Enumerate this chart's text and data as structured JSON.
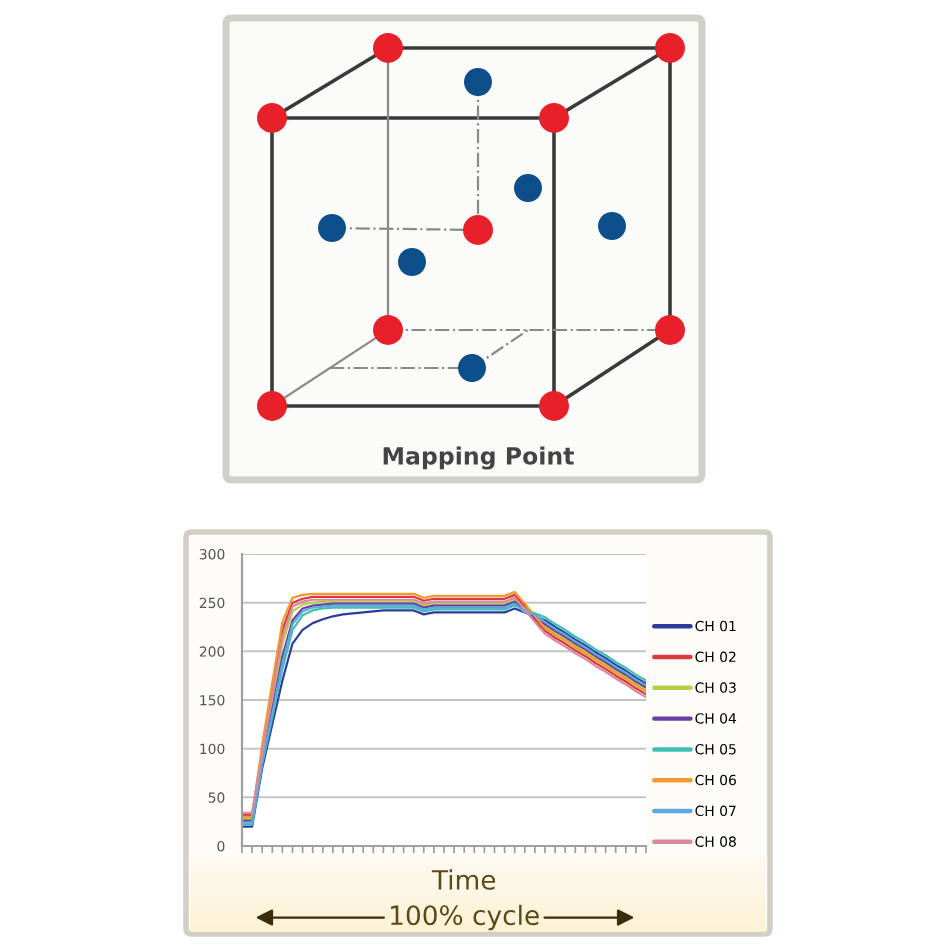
{
  "chart_data": [
    {
      "type": "other",
      "annotations": [
        "Mapping Point"
      ]
    },
    {
      "type": "line",
      "xlabel": "Time",
      "annotations": [
        "100% cycle"
      ],
      "categories": [
        null,
        null,
        null,
        null,
        null,
        null,
        null,
        null,
        null,
        null,
        null,
        null,
        null,
        null,
        null,
        null,
        null,
        null,
        null,
        null,
        null,
        null,
        null,
        null,
        null,
        null,
        null,
        null,
        null,
        null,
        null,
        null,
        null,
        null,
        null,
        null,
        null,
        null,
        null,
        null,
        null
      ],
      "series": [
        {
          "name": "CH 01",
          "color": "#2e3a9c",
          "values": [
            20,
            20,
            80,
            125,
            170,
            208,
            222,
            229,
            233,
            236,
            238,
            239,
            240,
            241,
            242,
            242,
            242,
            242,
            238,
            240,
            240,
            240,
            240,
            240,
            240,
            240,
            240,
            244,
            240,
            236,
            232,
            225,
            219,
            212,
            206,
            199,
            193,
            186,
            180,
            173,
            167
          ]
        },
        {
          "name": "CH 02",
          "color": "#d93a3f",
          "values": [
            32,
            32,
            98,
            160,
            222,
            250,
            254,
            256,
            256,
            256,
            256,
            256,
            256,
            256,
            256,
            256,
            256,
            256,
            252,
            254,
            254,
            254,
            254,
            254,
            254,
            254,
            254,
            258,
            246,
            233,
            221,
            214,
            208,
            201,
            195,
            188,
            182,
            175,
            169,
            162,
            156
          ]
        },
        {
          "name": "CH 03",
          "color": "#b5d046",
          "values": [
            28,
            28,
            92,
            150,
            208,
            241,
            248,
            250,
            251,
            251,
            251,
            251,
            251,
            251,
            251,
            251,
            251,
            251,
            247,
            249,
            249,
            249,
            249,
            249,
            249,
            249,
            249,
            253,
            244,
            235,
            226,
            219,
            213,
            206,
            200,
            193,
            187,
            180,
            174,
            167,
            161
          ]
        },
        {
          "name": "CH 04",
          "color": "#6b3fa0",
          "values": [
            26,
            26,
            88,
            140,
            195,
            232,
            244,
            247,
            248,
            249,
            249,
            249,
            249,
            249,
            249,
            249,
            249,
            249,
            245,
            247,
            247,
            247,
            247,
            247,
            247,
            247,
            247,
            251,
            242,
            234,
            228,
            221,
            215,
            208,
            202,
            195,
            189,
            182,
            176,
            169,
            163
          ]
        },
        {
          "name": "CH 05",
          "color": "#3fbfb0",
          "values": [
            22,
            22,
            84,
            132,
            182,
            222,
            237,
            242,
            244,
            245,
            245,
            245,
            245,
            245,
            245,
            245,
            245,
            245,
            241,
            243,
            243,
            243,
            243,
            243,
            243,
            243,
            243,
            247,
            243,
            239,
            235,
            228,
            222,
            215,
            209,
            202,
            196,
            189,
            183,
            176,
            170
          ]
        },
        {
          "name": "CH 06",
          "color": "#f29a2e",
          "values": [
            30,
            30,
            104,
            168,
            230,
            255,
            258,
            259,
            259,
            259,
            259,
            259,
            259,
            259,
            259,
            259,
            259,
            259,
            255,
            257,
            257,
            257,
            257,
            257,
            257,
            257,
            257,
            261,
            249,
            236,
            224,
            217,
            211,
            204,
            198,
            191,
            185,
            178,
            172,
            165,
            159
          ]
        },
        {
          "name": "CH 07",
          "color": "#5ba8e0",
          "values": [
            24,
            24,
            86,
            136,
            188,
            228,
            241,
            245,
            246,
            247,
            247,
            247,
            247,
            247,
            247,
            247,
            247,
            247,
            243,
            245,
            245,
            245,
            245,
            245,
            245,
            245,
            245,
            249,
            240,
            238,
            230,
            223,
            217,
            210,
            204,
            197,
            191,
            184,
            178,
            171,
            165
          ]
        },
        {
          "name": "CH 08",
          "color": "#d98aa0",
          "values": [
            34,
            34,
            95,
            155,
            215,
            246,
            251,
            253,
            253,
            253,
            253,
            253,
            253,
            253,
            253,
            253,
            253,
            253,
            249,
            251,
            251,
            251,
            251,
            251,
            251,
            251,
            251,
            255,
            243,
            230,
            218,
            211,
            205,
            198,
            192,
            185,
            179,
            172,
            166,
            159,
            153
          ]
        }
      ],
      "ylim": [
        0,
        300
      ],
      "yticks": [
        0,
        50,
        100,
        150,
        200,
        250,
        300
      ],
      "grid": "y",
      "legend": "right"
    }
  ]
}
